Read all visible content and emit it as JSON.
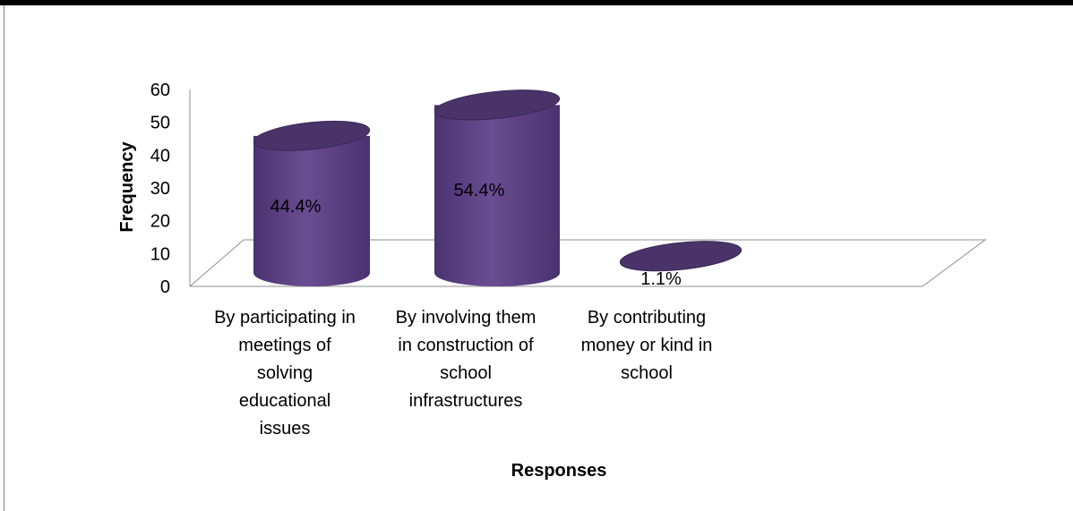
{
  "chart_data": {
    "type": "bar",
    "style": "3d-cylinder",
    "categories": [
      [
        "By participating in",
        "meetings of",
        "solving",
        "educational",
        "issues"
      ],
      [
        "By involving them",
        "in construction of",
        "school",
        "infrastructures"
      ],
      [
        "By contributing",
        "money or kind in",
        "school"
      ]
    ],
    "values": [
      44.4,
      54.4,
      1.1
    ],
    "data_labels": [
      "44.4%",
      "54.4%",
      "1.1%"
    ],
    "xlabel": "Responses",
    "ylabel": "Frequency",
    "ylim": [
      0,
      60
    ],
    "yticks": [
      "0",
      "10",
      "20",
      "30",
      "40",
      "50",
      "60"
    ],
    "grid": false,
    "legend": "none",
    "colors": {
      "bar_body": "#5b4080",
      "bar_top": "#4a3368",
      "bar_edge": "#3a2858",
      "floor": "#8c8c8c"
    }
  }
}
